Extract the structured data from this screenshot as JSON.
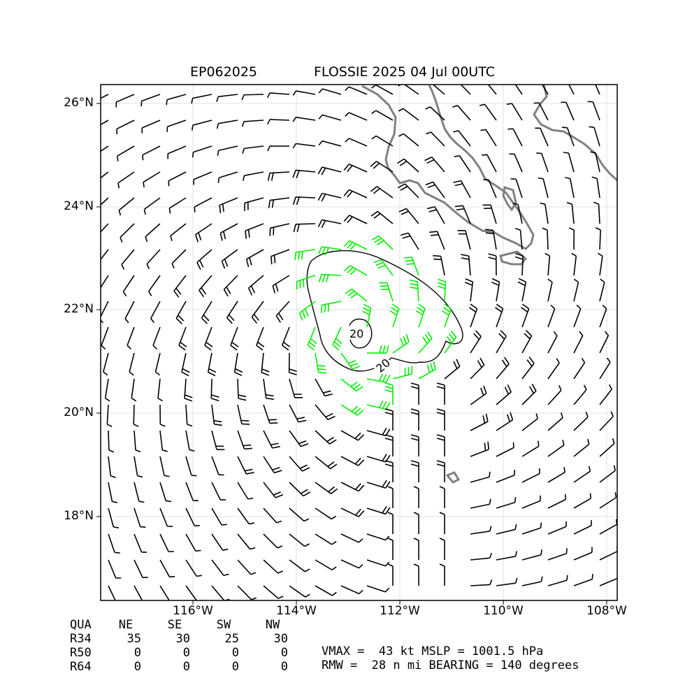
{
  "header": {
    "storm_id": "EP062025",
    "title": "FLOSSIE 2025 04 Jul 00UTC"
  },
  "map": {
    "lon_labels": [
      "116°W",
      "114°W",
      "112°W",
      "110°W",
      "108°W"
    ],
    "lat_labels": [
      "26°N",
      "24°N",
      "22°N",
      "20°N",
      "18°N"
    ],
    "contour_labels": [
      "20",
      "20"
    ],
    "colors": {
      "calm_barbs": "#000000",
      "r34_barbs": "#00ee00",
      "r50_barbs": "#ffa500",
      "coastline": "#808080",
      "grid": "#d9d9d9"
    }
  },
  "wind_radii": {
    "header": [
      "QUA",
      "NE",
      "SE",
      "SW",
      "NW"
    ],
    "rows": [
      [
        "R34",
        "35",
        "30",
        "25",
        "30"
      ],
      [
        "R50",
        "0",
        "0",
        "0",
        "0"
      ],
      [
        "R64",
        "0",
        "0",
        "0",
        "0"
      ]
    ]
  },
  "summary": {
    "line1": "VMAX =  43 kt MSLP = 1001.5 hPa",
    "line2": "RMW =  28 n mi BEARING = 140 degrees"
  }
}
